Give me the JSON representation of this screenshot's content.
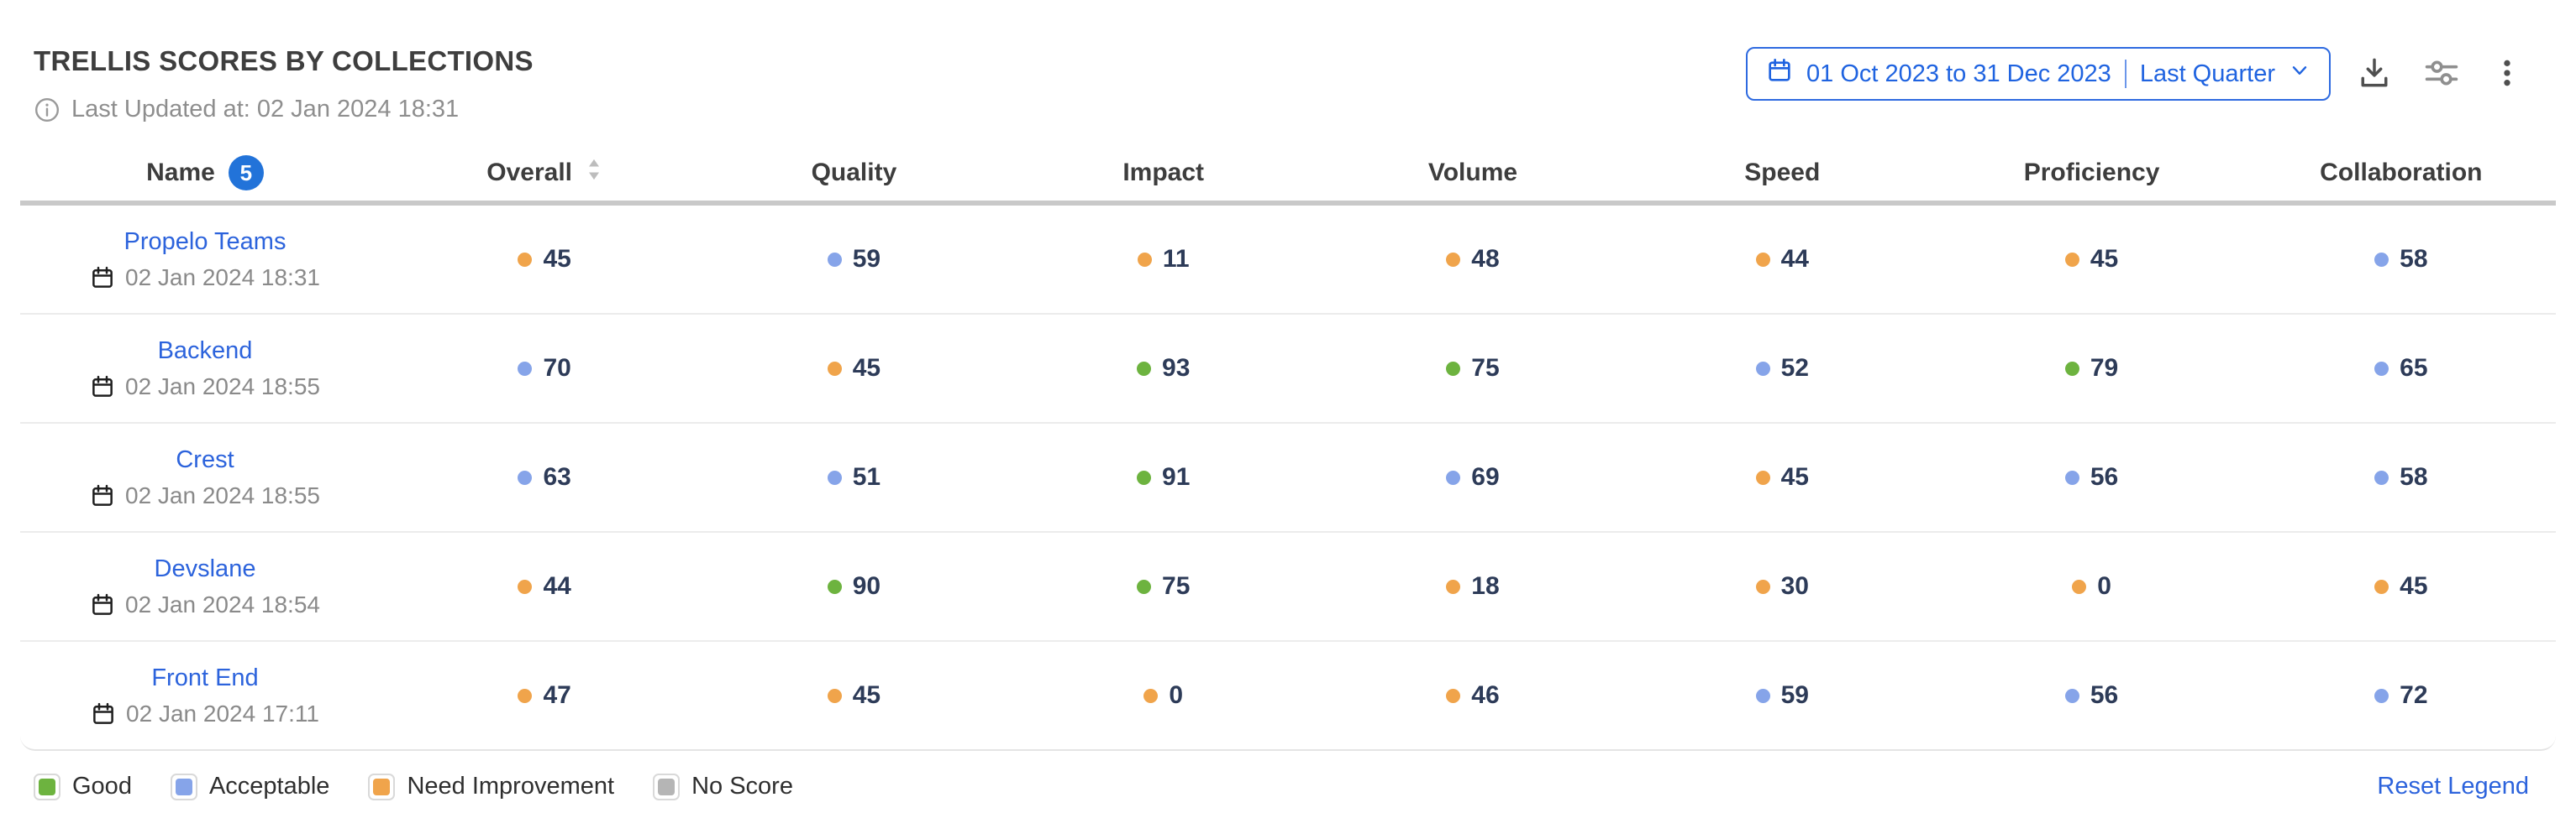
{
  "header": {
    "title": "TRELLIS SCORES BY COLLECTIONS",
    "last_updated": "Last Updated at: 02 Jan 2024 18:31",
    "date_range": "01 Oct 2023 to 31 Dec 2023",
    "date_preset": "Last Quarter"
  },
  "table": {
    "name_header": "Name",
    "name_count": "5",
    "sorted_column": "Overall",
    "columns": [
      "Overall",
      "Quality",
      "Impact",
      "Volume",
      "Speed",
      "Proficiency",
      "Collaboration"
    ],
    "rows": [
      {
        "name": "Propelo Teams",
        "updated": "02 Jan 2024 18:31",
        "scores": [
          {
            "value": "45",
            "status": "need_improvement"
          },
          {
            "value": "59",
            "status": "acceptable"
          },
          {
            "value": "11",
            "status": "need_improvement"
          },
          {
            "value": "48",
            "status": "need_improvement"
          },
          {
            "value": "44",
            "status": "need_improvement"
          },
          {
            "value": "45",
            "status": "need_improvement"
          },
          {
            "value": "58",
            "status": "acceptable"
          }
        ]
      },
      {
        "name": "Backend",
        "updated": "02 Jan 2024 18:55",
        "scores": [
          {
            "value": "70",
            "status": "acceptable"
          },
          {
            "value": "45",
            "status": "need_improvement"
          },
          {
            "value": "93",
            "status": "good"
          },
          {
            "value": "75",
            "status": "good"
          },
          {
            "value": "52",
            "status": "acceptable"
          },
          {
            "value": "79",
            "status": "good"
          },
          {
            "value": "65",
            "status": "acceptable"
          }
        ]
      },
      {
        "name": "Crest",
        "updated": "02 Jan 2024 18:55",
        "scores": [
          {
            "value": "63",
            "status": "acceptable"
          },
          {
            "value": "51",
            "status": "acceptable"
          },
          {
            "value": "91",
            "status": "good"
          },
          {
            "value": "69",
            "status": "acceptable"
          },
          {
            "value": "45",
            "status": "need_improvement"
          },
          {
            "value": "56",
            "status": "acceptable"
          },
          {
            "value": "58",
            "status": "acceptable"
          }
        ]
      },
      {
        "name": "Devslane",
        "updated": "02 Jan 2024 18:54",
        "scores": [
          {
            "value": "44",
            "status": "need_improvement"
          },
          {
            "value": "90",
            "status": "good"
          },
          {
            "value": "75",
            "status": "good"
          },
          {
            "value": "18",
            "status": "need_improvement"
          },
          {
            "value": "30",
            "status": "need_improvement"
          },
          {
            "value": "0",
            "status": "need_improvement"
          },
          {
            "value": "45",
            "status": "need_improvement"
          }
        ]
      },
      {
        "name": "Front End",
        "updated": "02 Jan 2024 17:11",
        "scores": [
          {
            "value": "47",
            "status": "need_improvement"
          },
          {
            "value": "45",
            "status": "need_improvement"
          },
          {
            "value": "0",
            "status": "need_improvement"
          },
          {
            "value": "46",
            "status": "need_improvement"
          },
          {
            "value": "59",
            "status": "acceptable"
          },
          {
            "value": "56",
            "status": "acceptable"
          },
          {
            "value": "72",
            "status": "acceptable"
          }
        ]
      }
    ]
  },
  "legend": {
    "items": [
      {
        "label": "Good",
        "status": "good"
      },
      {
        "label": "Acceptable",
        "status": "acceptable"
      },
      {
        "label": "Need Improvement",
        "status": "need_improvement"
      },
      {
        "label": "No Score",
        "status": "no_score"
      }
    ],
    "reset_label": "Reset Legend"
  },
  "colors": {
    "good": "#6db33f",
    "acceptable": "#86a4e9",
    "need_improvement": "#f0a44b",
    "no_score": "#b5b5b5",
    "accent_blue": "#2c63dc"
  }
}
